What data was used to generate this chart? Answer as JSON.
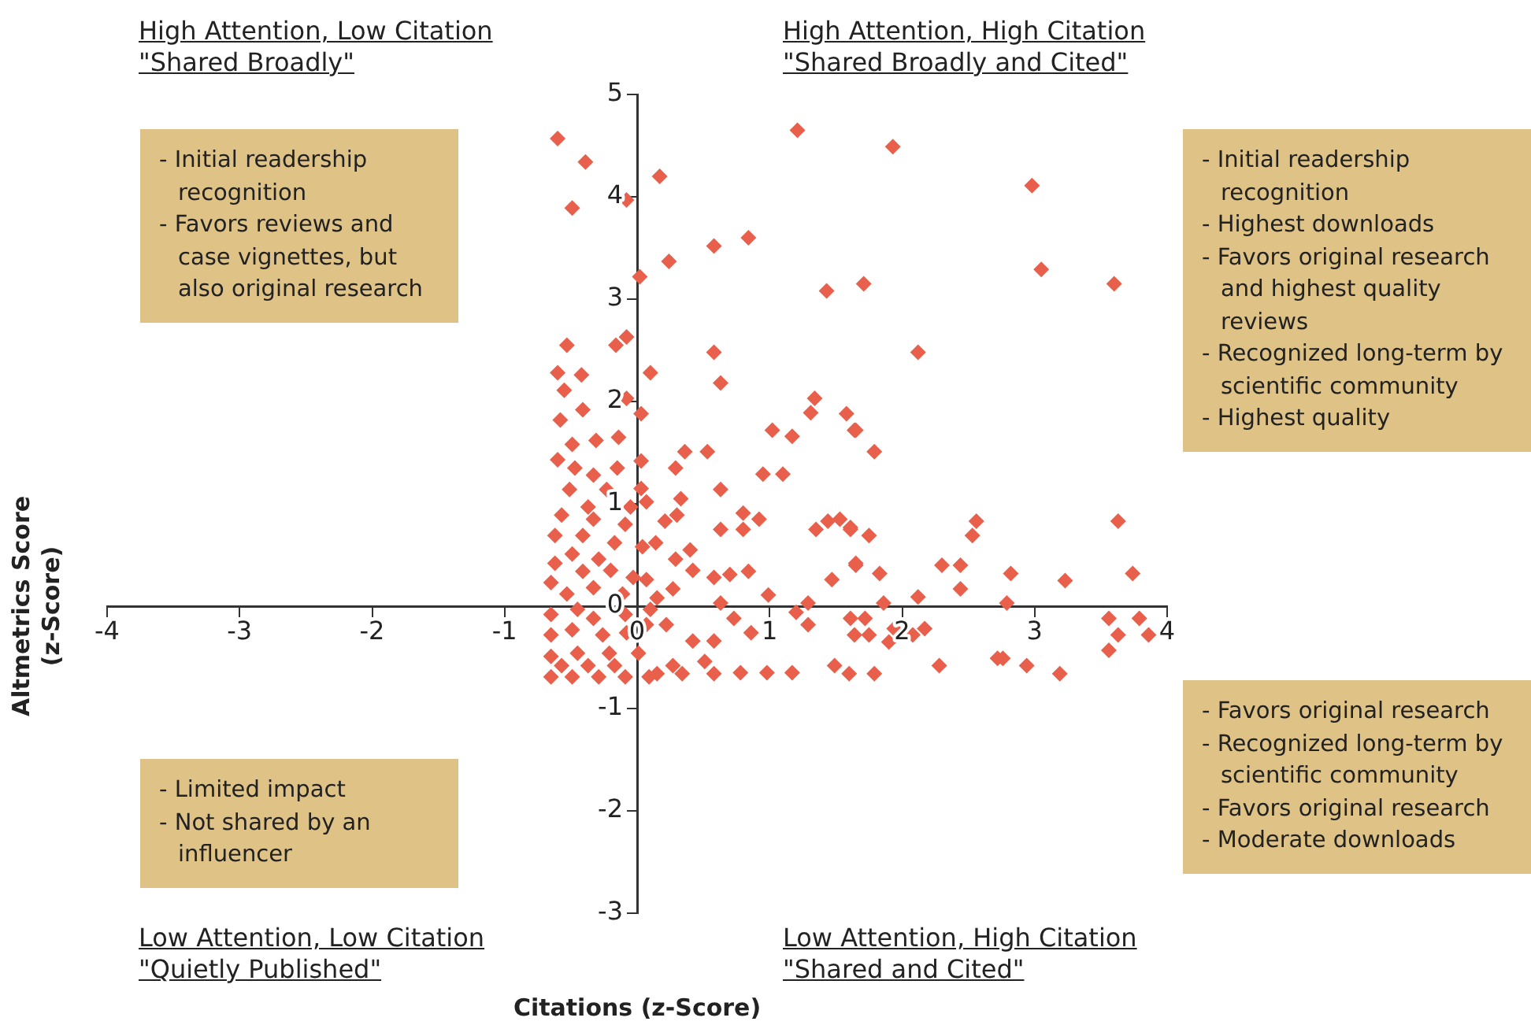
{
  "chart_data": {
    "type": "scatter",
    "xlabel": "Citations (z-Score)",
    "ylabel": "Altmetrics Score\n(z-Score)",
    "xlim": [
      -4,
      4
    ],
    "ylim": [
      -3,
      5
    ],
    "xticks": [
      -4,
      -3,
      -2,
      -1,
      0,
      1,
      2,
      3,
      4
    ],
    "yticks": [
      -3,
      -2,
      -1,
      0,
      1,
      2,
      3,
      4,
      5
    ],
    "grid": false,
    "legend": false,
    "marker": "diamond",
    "annotations": [
      "High Attention, Low Citation\n\"Shared Broadly\"",
      "High Attention, High Citation\n\"Shared Broadly and Cited\"",
      "Low Attention, Low Citation\n\"Quietly Published\"",
      "Low Attention, High Citation\n\"Shared and Cited\"",
      "- Initial readership recognition\n- Favors reviews and case vignettes, but also original research",
      "- Initial readership recognition\n- Highest downloads\n- Favors original research and highest quality reviews\n- Recognized long-term by scientific community\n- Highest quality",
      "- Limited impact\n- Not shared by an influencer",
      "- Favors original research\n- Recognized long-term by scientific community\n- Favors original research\n- Moderate downloads"
    ],
    "series": [
      {
        "color": "#e8604c",
        "x": [
          -0.6,
          -0.39,
          -0.49,
          -0.08,
          0.17,
          1.21,
          0.02,
          0.24,
          0.58,
          0.84,
          1.43,
          1.71,
          -0.53,
          -0.16,
          -0.08,
          0.58,
          1.93,
          2.98,
          3.05,
          3.6,
          2.12,
          1.65,
          1.79,
          1.61,
          1.75,
          1.65,
          1.83,
          2.56,
          2.53,
          2.3,
          2.44,
          2.44,
          2.82,
          3.23,
          3.63,
          3.74,
          2.79,
          2.12,
          1.86,
          1.72,
          1.94,
          2.17,
          2.08,
          1.75,
          1.9,
          2.28,
          1.79,
          2.72,
          2.76,
          2.94,
          3.19,
          3.56,
          3.79,
          3.63,
          3.86,
          3.56,
          0.63,
          0.1,
          1.34,
          1.31,
          1.58,
          1.02,
          1.17,
          1.64,
          0.53,
          0.36,
          0.29,
          0.95,
          1.1,
          0.63,
          0.33,
          0.3,
          0.8,
          0.92,
          0.21,
          0.63,
          0.8,
          1.35,
          1.44,
          1.53,
          1.61,
          0.14,
          0.29,
          0.4,
          0.42,
          0.07,
          0.27,
          0.58,
          0.7,
          0.84,
          1.47,
          1.65,
          0.99,
          0.63,
          1.2,
          1.29,
          1.29,
          0.73,
          1.61,
          0.86,
          1.64,
          1.49,
          1.6,
          1.17,
          0.98,
          0.78,
          0.58,
          0.34,
          0.15,
          0.42,
          0.22,
          0.15,
          -0.6,
          -0.42,
          -0.55,
          -0.08,
          0.03,
          -0.58,
          -0.41,
          -0.49,
          -0.31,
          -0.14,
          -0.6,
          -0.47,
          -0.15,
          0.03,
          -0.33,
          -0.51,
          -0.23,
          0.03,
          -0.05,
          -0.37,
          -0.57,
          0.07,
          -0.33,
          -0.09,
          -0.62,
          -0.41,
          -0.17,
          0.04,
          -0.49,
          -0.29,
          -0.62,
          -0.41,
          -0.2,
          -0.03,
          -0.65,
          -0.53,
          -0.33,
          -0.11,
          -0.65,
          -0.45,
          -0.33,
          -0.09,
          0.1,
          -0.65,
          -0.49,
          -0.26,
          -0.08,
          0.07,
          -0.65,
          -0.45,
          -0.21,
          0.01,
          -0.65,
          -0.49,
          -0.29,
          -0.09,
          0.09,
          0.27,
          -0.57,
          -0.37,
          -0.17,
          0.51,
          0.58
        ],
        "values": [
          4.57,
          4.34,
          3.89,
          3.97,
          4.2,
          4.65,
          3.22,
          3.37,
          3.52,
          3.6,
          3.08,
          3.15,
          2.55,
          2.55,
          2.63,
          2.48,
          4.49,
          4.11,
          3.29,
          3.15,
          2.48,
          1.72,
          1.51,
          0.77,
          0.69,
          0.4,
          0.32,
          0.83,
          0.69,
          0.4,
          0.4,
          0.17,
          0.32,
          0.25,
          0.83,
          0.32,
          0.03,
          0.09,
          0.03,
          -0.12,
          -0.22,
          -0.22,
          -0.28,
          -0.28,
          -0.35,
          -0.58,
          -0.66,
          -0.51,
          -0.51,
          -0.58,
          -0.66,
          -0.12,
          -0.12,
          -0.28,
          -0.28,
          -0.43,
          2.18,
          2.28,
          2.03,
          1.89,
          1.88,
          1.72,
          1.66,
          1.72,
          1.51,
          1.51,
          1.35,
          1.29,
          1.29,
          1.14,
          1.05,
          0.89,
          0.91,
          0.85,
          0.83,
          0.75,
          0.75,
          0.75,
          0.83,
          0.85,
          0.75,
          0.62,
          0.46,
          0.55,
          0.35,
          0.26,
          0.17,
          0.28,
          0.31,
          0.34,
          0.26,
          0.42,
          0.11,
          0.03,
          -0.06,
          0.03,
          -0.18,
          -0.12,
          -0.12,
          -0.26,
          -0.28,
          -0.58,
          -0.66,
          -0.65,
          -0.65,
          -0.65,
          -0.66,
          -0.66,
          -0.66,
          -0.34,
          -0.18,
          0.08,
          2.28,
          2.26,
          2.11,
          2.03,
          1.88,
          1.82,
          1.92,
          1.58,
          1.62,
          1.65,
          1.43,
          1.35,
          1.35,
          1.42,
          1.28,
          1.14,
          1.14,
          1.15,
          0.97,
          0.97,
          0.89,
          1.02,
          0.85,
          0.8,
          0.69,
          0.69,
          0.62,
          0.58,
          0.51,
          0.46,
          0.42,
          0.34,
          0.35,
          0.28,
          0.23,
          0.12,
          0.18,
          0.12,
          -0.08,
          -0.03,
          -0.12,
          -0.08,
          -0.03,
          -0.28,
          -0.23,
          -0.28,
          -0.26,
          -0.18,
          -0.49,
          -0.46,
          -0.46,
          -0.46,
          -0.69,
          -0.69,
          -0.69,
          -0.69,
          -0.69,
          -0.58,
          -0.58,
          -0.58,
          -0.58,
          -0.54,
          -0.34
        ]
      }
    ]
  }
}
